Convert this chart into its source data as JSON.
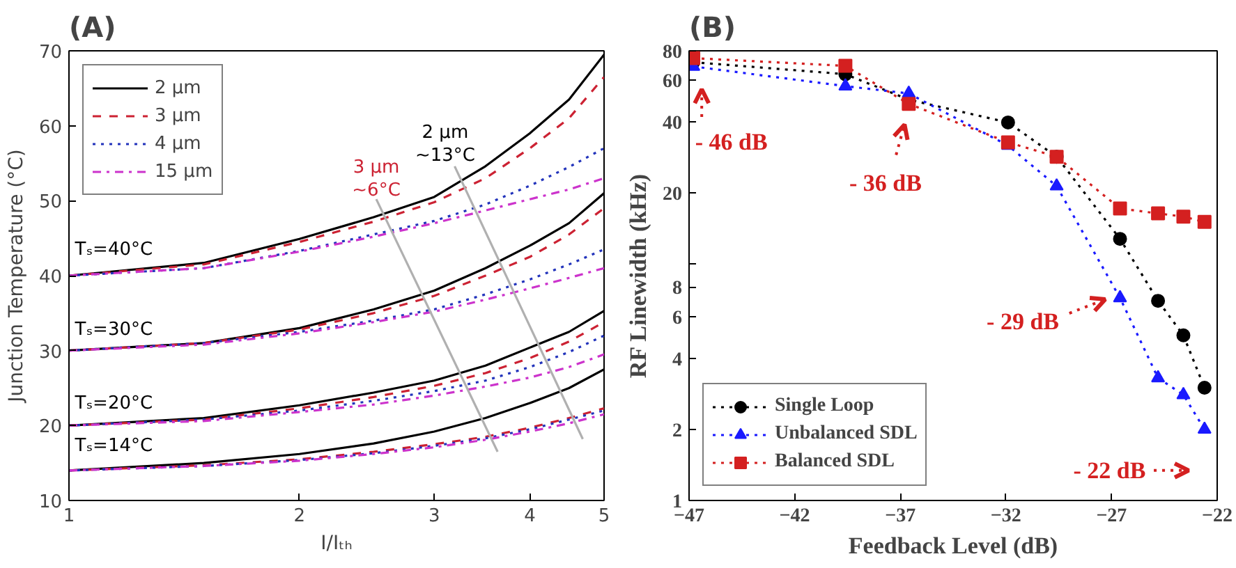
{
  "chart_data": [
    {
      "type": "line",
      "title": "(A)",
      "xlabel": "I/Iₜₕ",
      "ylabel": "Junction Temperature (°C)",
      "log": "x",
      "xlim": [
        1,
        5
      ],
      "ylim": [
        10,
        70
      ],
      "xticks": [
        1,
        2,
        3,
        4,
        5
      ],
      "yticks": [
        10,
        20,
        30,
        40,
        50,
        60,
        70
      ],
      "grid": false,
      "legend": "top left",
      "x": [
        1,
        1.5,
        2,
        2.5,
        3,
        3.5,
        4,
        4.5,
        5
      ],
      "series": [
        {
          "name": "2 μm",
          "color": "#000000",
          "line_style": "solid",
          "values": [
            40,
            41.7,
            44.9,
            47.8,
            50.5,
            54.6,
            59,
            63.5,
            69.5
          ]
        },
        {
          "name": "3 μm",
          "color": "#cc2233",
          "line_style": "dashed",
          "values": [
            40,
            41.5,
            44.5,
            47.2,
            49.8,
            53,
            57,
            61,
            66.5
          ]
        },
        {
          "name": "4 μm",
          "color": "#2233bb",
          "line_style": "dotted",
          "values": [
            40,
            41,
            43.3,
            45.5,
            47.3,
            49.5,
            52,
            54.5,
            57
          ]
        },
        {
          "name": "15 μm",
          "color": "#cc33cc",
          "line_style": "dashdot",
          "values": [
            40,
            41,
            43.2,
            45.2,
            47,
            48.7,
            50.2,
            51.5,
            53
          ]
        },
        {
          "color": "#000000",
          "line_style": "solid",
          "values": [
            30,
            31,
            33,
            35.5,
            38,
            41,
            44,
            47,
            51
          ]
        },
        {
          "color": "#cc2233",
          "line_style": "dashed",
          "values": [
            30,
            31,
            32.8,
            35,
            37.3,
            40,
            42.5,
            45.5,
            49
          ]
        },
        {
          "color": "#2233bb",
          "line_style": "dotted",
          "values": [
            30,
            31,
            32.5,
            34,
            35.5,
            37.5,
            39.5,
            41.5,
            43.5
          ]
        },
        {
          "color": "#cc33cc",
          "line_style": "dashdot",
          "values": [
            30,
            30.8,
            32.3,
            33.8,
            35.2,
            36.8,
            38.3,
            39.7,
            41
          ]
        },
        {
          "color": "#000000",
          "line_style": "solid",
          "values": [
            20,
            21,
            22.7,
            24.4,
            26,
            28,
            30.4,
            32.5,
            35.3
          ]
        },
        {
          "color": "#cc2233",
          "line_style": "dashed",
          "values": [
            20,
            20.8,
            22.3,
            23.8,
            25.3,
            27,
            29,
            31.2,
            33.8
          ]
        },
        {
          "color": "#2233bb",
          "line_style": "dotted",
          "values": [
            20,
            20.8,
            22,
            23.3,
            24.6,
            26,
            27.8,
            29.8,
            32
          ]
        },
        {
          "color": "#cc33cc",
          "line_style": "dashdot",
          "values": [
            20,
            20.6,
            21.8,
            22.8,
            24,
            25.2,
            26.4,
            27.8,
            29.5
          ]
        },
        {
          "color": "#000000",
          "line_style": "solid",
          "values": [
            14,
            15,
            16.2,
            17.6,
            19.2,
            21,
            23,
            25,
            27.5
          ]
        },
        {
          "color": "#cc2233",
          "line_style": "dashed",
          "values": [
            14,
            14.7,
            15.5,
            16.5,
            17.5,
            18.5,
            19.7,
            21,
            22.3
          ]
        },
        {
          "color": "#2233bb",
          "line_style": "dotted",
          "values": [
            14,
            14.6,
            15.4,
            16.3,
            17.3,
            18.3,
            19.5,
            20.8,
            22
          ]
        },
        {
          "color": "#cc33cc",
          "line_style": "dashdot",
          "values": [
            14,
            14.6,
            15.3,
            16.2,
            17.1,
            18.1,
            19.2,
            20.3,
            21.5
          ]
        },
        {
          "color": "#b0b0b0",
          "line_style": "solid",
          "x": [
            2.52,
            3.63
          ],
          "values": [
            50.2,
            16.5
          ]
        },
        {
          "color": "#b0b0b0",
          "line_style": "solid",
          "x": [
            3.19,
            4.69
          ],
          "values": [
            54.6,
            18.2
          ]
        }
      ],
      "annotations": [
        "Tₛ=40°C",
        "Tₛ=30°C",
        "Tₛ=20°C",
        "Tₛ=14°C",
        "2 μm\n~13°C",
        "3 μm\n~6°C"
      ]
    },
    {
      "type": "line",
      "title": "(B)",
      "xlabel": "Feedback Level (dB)",
      "ylabel": "RF Linewidth (kHz)",
      "log": "y",
      "xlim": [
        -47,
        -22
      ],
      "ylim": [
        1,
        80
      ],
      "xticks": [
        -47,
        -42,
        -37,
        -32,
        -27,
        -22
      ],
      "yticks": [
        1,
        2,
        4,
        6,
        8,
        {
          "value": 10,
          "label": null
        },
        20,
        40,
        60,
        80
      ],
      "grid": false,
      "legend": "bottom left",
      "line_style": "dotted",
      "x": [
        -46.8,
        -39.6,
        -36.6,
        -31.9,
        -29.6,
        -26.6,
        -24.8,
        -23.6,
        -22.6
      ],
      "series": [
        {
          "name": "Single Loop",
          "color": "#000000",
          "marker": "circle",
          "values": [
            71.6,
            63.7,
            49.7,
            39.8,
            28.5,
            12.8,
            7.0,
            5.0,
            3.0
          ]
        },
        {
          "name": "Unbalanced SDL",
          "color": "#1a1aff",
          "marker": "triangle",
          "values": [
            68.7,
            56.7,
            52.8,
            31.8,
            21.4,
            7.2,
            3.3,
            2.8,
            2.0
          ]
        },
        {
          "name": "Balanced SDL",
          "color": "#d42020",
          "marker": "square",
          "values": [
            74.5,
            69.1,
            47.7,
            32.8,
            28.5,
            17.2,
            16.4,
            15.9,
            15.1
          ]
        }
      ],
      "annotations": [
        "- 46 dB",
        "- 36 dB",
        "- 29 dB",
        "- 22 dB"
      ]
    }
  ]
}
